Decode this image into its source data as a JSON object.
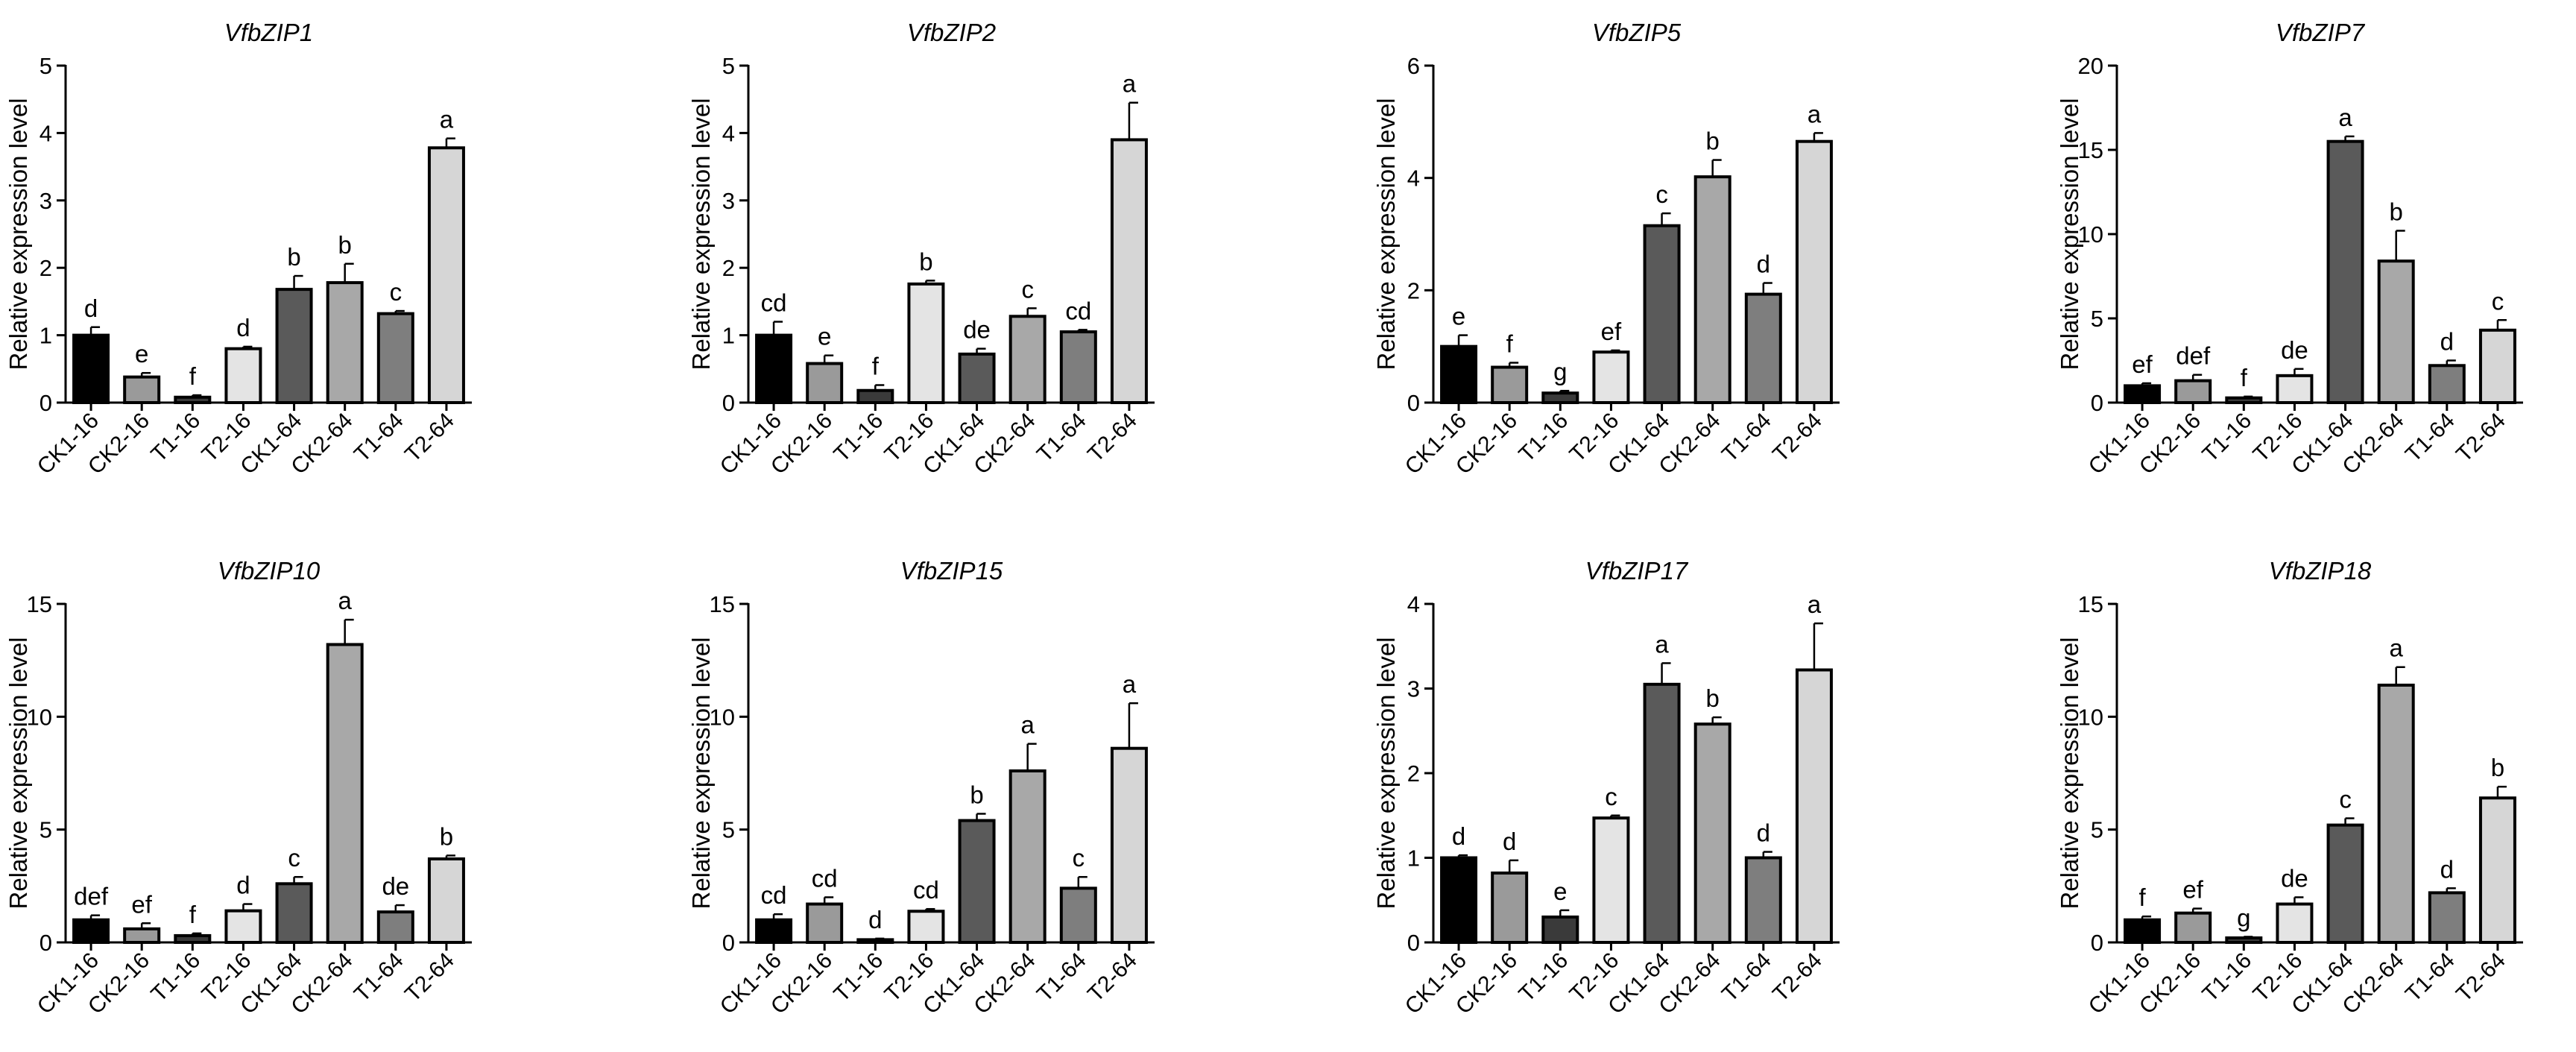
{
  "chart_data": [
    {
      "type": "bar",
      "title": "VfbZIP1",
      "ylabel": "Relative expression level",
      "xlabel": "",
      "ylim": [
        0,
        5
      ],
      "yticks": [
        0,
        1,
        2,
        3,
        4,
        5
      ],
      "categories": [
        "CK1-16",
        "CK2-16",
        "T1-16",
        "T2-16",
        "CK1-64",
        "CK2-64",
        "T1-64",
        "T2-64"
      ],
      "values": [
        1.0,
        0.38,
        0.08,
        0.8,
        1.68,
        1.78,
        1.32,
        3.78
      ],
      "errors": [
        0.12,
        0.06,
        0.03,
        0.03,
        0.2,
        0.28,
        0.04,
        0.14
      ],
      "significance": [
        "d",
        "e",
        "f",
        "d",
        "b",
        "b",
        "c",
        "a"
      ],
      "bar_colors": [
        "#000000",
        "#9a9a9a",
        "#3a3a3a",
        "#e4e4e4",
        "#5a5a5a",
        "#a8a8a8",
        "#7e7e7e",
        "#d6d6d6"
      ]
    },
    {
      "type": "bar",
      "title": "VfbZIP2",
      "ylabel": "Relative expression level",
      "xlabel": "",
      "ylim": [
        0,
        5
      ],
      "yticks": [
        0,
        1,
        2,
        3,
        4,
        5
      ],
      "categories": [
        "CK1-16",
        "CK2-16",
        "T1-16",
        "T2-16",
        "CK1-64",
        "CK2-64",
        "T1-64",
        "T2-64"
      ],
      "values": [
        1.0,
        0.58,
        0.18,
        1.76,
        0.72,
        1.28,
        1.05,
        3.9
      ],
      "errors": [
        0.2,
        0.12,
        0.08,
        0.05,
        0.08,
        0.12,
        0.03,
        0.55
      ],
      "significance": [
        "cd",
        "e",
        "f",
        "b",
        "de",
        "c",
        "cd",
        "a"
      ],
      "bar_colors": [
        "#000000",
        "#9a9a9a",
        "#3a3a3a",
        "#e4e4e4",
        "#5a5a5a",
        "#a8a8a8",
        "#7e7e7e",
        "#d6d6d6"
      ]
    },
    {
      "type": "bar",
      "title": "VfbZIP5",
      "ylabel": "Relative expression level",
      "xlabel": "",
      "ylim": [
        0,
        6
      ],
      "yticks": [
        0,
        2,
        4,
        6
      ],
      "categories": [
        "CK1-16",
        "CK2-16",
        "T1-16",
        "T2-16",
        "CK1-64",
        "CK2-64",
        "T1-64",
        "T2-64"
      ],
      "values": [
        1.0,
        0.63,
        0.17,
        0.9,
        3.15,
        4.02,
        1.93,
        4.65
      ],
      "errors": [
        0.2,
        0.08,
        0.04,
        0.03,
        0.22,
        0.3,
        0.2,
        0.15
      ],
      "significance": [
        "e",
        "f",
        "g",
        "ef",
        "c",
        "b",
        "d",
        "a"
      ],
      "bar_colors": [
        "#000000",
        "#9a9a9a",
        "#3a3a3a",
        "#e4e4e4",
        "#5a5a5a",
        "#a8a8a8",
        "#7e7e7e",
        "#d6d6d6"
      ]
    },
    {
      "type": "bar",
      "title": "VfbZIP7",
      "ylabel": "Relative expression level",
      "xlabel": "",
      "ylim": [
        0,
        20
      ],
      "yticks": [
        0,
        5,
        10,
        15,
        20
      ],
      "categories": [
        "CK1-16",
        "CK2-16",
        "T1-16",
        "T2-16",
        "CK1-64",
        "CK2-64",
        "T1-64",
        "T2-64"
      ],
      "values": [
        1.0,
        1.3,
        0.28,
        1.6,
        15.5,
        8.4,
        2.2,
        4.3
      ],
      "errors": [
        0.15,
        0.35,
        0.08,
        0.4,
        0.3,
        1.8,
        0.3,
        0.6
      ],
      "significance": [
        "ef",
        "def",
        "f",
        "de",
        "a",
        "b",
        "d",
        "c"
      ],
      "bar_colors": [
        "#000000",
        "#9a9a9a",
        "#3a3a3a",
        "#e4e4e4",
        "#5a5a5a",
        "#a8a8a8",
        "#7e7e7e",
        "#d6d6d6"
      ]
    },
    {
      "type": "bar",
      "title": "VfbZIP10",
      "ylabel": "Relative expression level",
      "xlabel": "",
      "ylim": [
        0,
        15
      ],
      "yticks": [
        0,
        5,
        10,
        15
      ],
      "categories": [
        "CK1-16",
        "CK2-16",
        "T1-16",
        "T2-16",
        "CK1-64",
        "CK2-64",
        "T1-64",
        "T2-64"
      ],
      "values": [
        1.0,
        0.6,
        0.3,
        1.4,
        2.6,
        13.2,
        1.35,
        3.7
      ],
      "errors": [
        0.2,
        0.25,
        0.1,
        0.3,
        0.3,
        1.1,
        0.3,
        0.15
      ],
      "significance": [
        "def",
        "ef",
        "f",
        "d",
        "c",
        "a",
        "de",
        "b"
      ],
      "bar_colors": [
        "#000000",
        "#9a9a9a",
        "#3a3a3a",
        "#e4e4e4",
        "#5a5a5a",
        "#a8a8a8",
        "#7e7e7e",
        "#d6d6d6"
      ]
    },
    {
      "type": "bar",
      "title": "VfbZIP15",
      "ylabel": "Relative expression level",
      "xlabel": "",
      "ylim": [
        0,
        15
      ],
      "yticks": [
        0,
        5,
        10,
        15
      ],
      "categories": [
        "CK1-16",
        "CK2-16",
        "T1-16",
        "T2-16",
        "CK1-64",
        "CK2-64",
        "T1-64",
        "T2-64"
      ],
      "values": [
        1.0,
        1.7,
        0.12,
        1.38,
        5.4,
        7.6,
        2.4,
        8.6
      ],
      "errors": [
        0.25,
        0.3,
        0.05,
        0.1,
        0.3,
        1.2,
        0.5,
        2.0
      ],
      "significance": [
        "cd",
        "cd",
        "d",
        "cd",
        "b",
        "a",
        "c",
        "a"
      ],
      "bar_colors": [
        "#000000",
        "#9a9a9a",
        "#3a3a3a",
        "#e4e4e4",
        "#5a5a5a",
        "#a8a8a8",
        "#7e7e7e",
        "#d6d6d6"
      ]
    },
    {
      "type": "bar",
      "title": "VfbZIP17",
      "ylabel": "Relative expression level",
      "xlabel": "",
      "ylim": [
        0,
        4
      ],
      "yticks": [
        0,
        1,
        2,
        3,
        4
      ],
      "categories": [
        "CK1-16",
        "CK2-16",
        "T1-16",
        "T2-16",
        "CK1-64",
        "CK2-64",
        "T1-64",
        "T2-64"
      ],
      "values": [
        1.0,
        0.82,
        0.3,
        1.47,
        3.05,
        2.58,
        1.0,
        3.22
      ],
      "errors": [
        0.03,
        0.15,
        0.08,
        0.03,
        0.25,
        0.08,
        0.07,
        0.55
      ],
      "significance": [
        "d",
        "d",
        "e",
        "c",
        "a",
        "b",
        "d",
        "a"
      ],
      "bar_colors": [
        "#000000",
        "#9a9a9a",
        "#3a3a3a",
        "#e4e4e4",
        "#5a5a5a",
        "#a8a8a8",
        "#7e7e7e",
        "#d6d6d6"
      ]
    },
    {
      "type": "bar",
      "title": "VfbZIP18",
      "ylabel": "Relative expression level",
      "xlabel": "",
      "ylim": [
        0,
        15
      ],
      "yticks": [
        0,
        5,
        10,
        15
      ],
      "categories": [
        "CK1-16",
        "CK2-16",
        "T1-16",
        "T2-16",
        "CK1-64",
        "CK2-64",
        "T1-64",
        "T2-64"
      ],
      "values": [
        1.0,
        1.3,
        0.2,
        1.7,
        5.2,
        11.4,
        2.2,
        6.4
      ],
      "errors": [
        0.15,
        0.2,
        0.05,
        0.3,
        0.3,
        0.8,
        0.2,
        0.5
      ],
      "significance": [
        "f",
        "ef",
        "g",
        "de",
        "c",
        "a",
        "d",
        "b"
      ],
      "bar_colors": [
        "#000000",
        "#9a9a9a",
        "#3a3a3a",
        "#e4e4e4",
        "#5a5a5a",
        "#a8a8a8",
        "#7e7e7e",
        "#d6d6d6"
      ]
    }
  ]
}
